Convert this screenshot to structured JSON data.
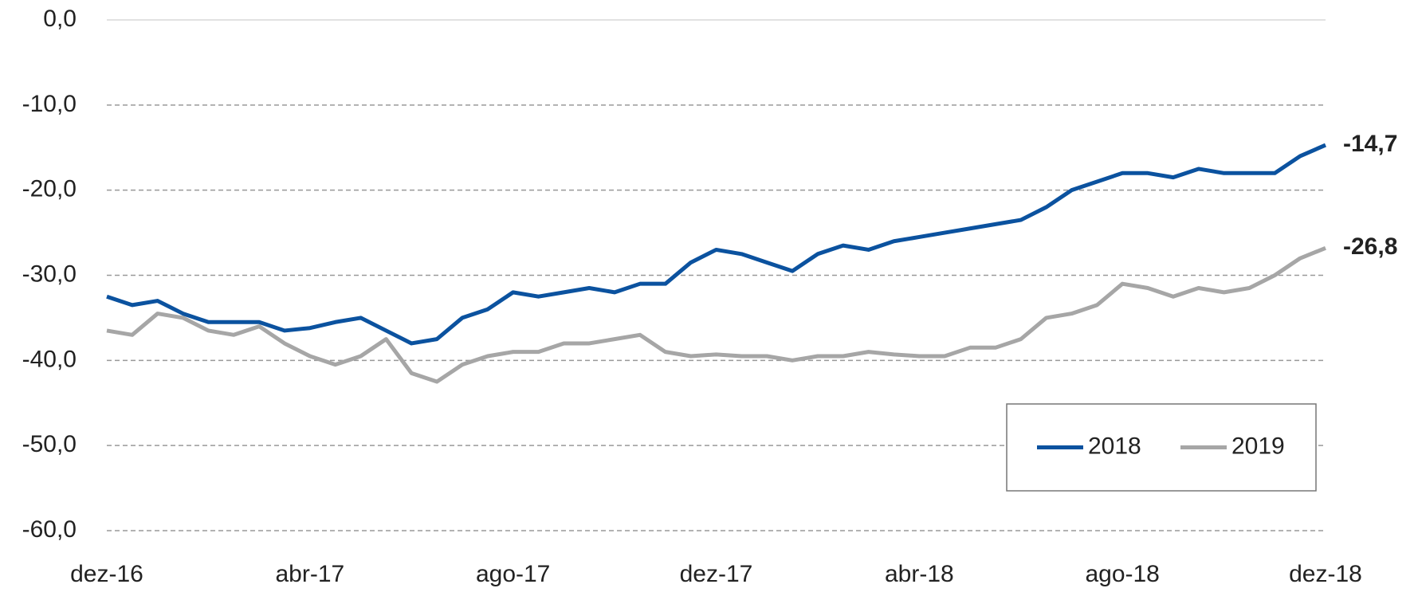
{
  "chart_data": {
    "type": "line",
    "categories": [
      "dez-16",
      null,
      null,
      null,
      null,
      null,
      null,
      null,
      "abr-17",
      null,
      null,
      null,
      null,
      null,
      null,
      null,
      "ago-17",
      null,
      null,
      null,
      null,
      null,
      null,
      null,
      "dez-17",
      null,
      null,
      null,
      null,
      null,
      null,
      null,
      "abr-18",
      null,
      null,
      null,
      null,
      null,
      null,
      null,
      "ago-18",
      null,
      null,
      null,
      null,
      null,
      null,
      null,
      "dez-18"
    ],
    "series": [
      {
        "name": "2018",
        "color": "#0b529f",
        "values": [
          -32.5,
          -33.5,
          -33,
          -34.5,
          -35.5,
          -35.5,
          -35.5,
          -36.5,
          -36.2,
          -35.5,
          -35,
          -36.5,
          -38,
          -37.5,
          -35,
          -34,
          -32,
          -32.5,
          -32,
          -31.5,
          -32,
          -31,
          -31,
          -28.5,
          -27,
          -27.5,
          -28.5,
          -29.5,
          -27.5,
          -26.5,
          -27,
          -26,
          -25.5,
          -25,
          -24.5,
          -24,
          -23.5,
          -22,
          -20,
          -19,
          -18,
          -18,
          -18.5,
          -17.5,
          -18,
          -18,
          -18,
          -16,
          -14.7
        ],
        "value_labels": [
          null,
          null,
          null,
          null,
          null,
          null,
          null,
          null,
          null,
          null,
          null,
          null,
          null,
          null,
          null,
          null,
          null,
          null,
          null,
          null,
          null,
          null,
          null,
          null,
          null,
          null,
          null,
          null,
          null,
          null,
          null,
          null,
          null,
          null,
          null,
          null,
          null,
          null,
          null,
          null,
          null,
          null,
          null,
          null,
          null,
          null,
          null,
          null,
          "-14,7"
        ]
      },
      {
        "name": "2019",
        "color": "#a6a6a6",
        "values": [
          -36.5,
          -37,
          -34.5,
          -35,
          -36.5,
          -37,
          -36,
          -38,
          -39.5,
          -40.5,
          -39.5,
          -37.5,
          -41.5,
          -42.5,
          -40.5,
          -39.5,
          -39,
          -39,
          -38,
          -38,
          -37.5,
          -37,
          -39,
          -39.5,
          -39.3,
          -39.5,
          -39.5,
          -40,
          -39.5,
          -39.5,
          -39,
          -39.3,
          -39.5,
          -39.5,
          -38.5,
          -38.5,
          -37.5,
          -35,
          -34.5,
          -33.5,
          -31,
          -31.5,
          -32.5,
          -31.5,
          -32,
          -31.5,
          -30,
          -28,
          -26.8
        ],
        "value_labels": [
          null,
          null,
          null,
          null,
          null,
          null,
          null,
          null,
          null,
          null,
          null,
          null,
          null,
          null,
          null,
          null,
          null,
          null,
          null,
          null,
          null,
          null,
          null,
          null,
          null,
          null,
          null,
          null,
          null,
          null,
          null,
          null,
          null,
          null,
          null,
          null,
          null,
          null,
          null,
          null,
          null,
          null,
          null,
          null,
          null,
          null,
          null,
          null,
          "-26,8"
        ]
      }
    ],
    "ylim": [
      -60,
      0
    ],
    "yticks": [
      {
        "value": 0,
        "label": "0,0"
      },
      {
        "value": -10,
        "label": "-10,0"
      },
      {
        "value": -20,
        "label": "-20,0"
      },
      {
        "value": -30,
        "label": "-30,0"
      },
      {
        "value": -40,
        "label": "-40,0"
      },
      {
        "value": -50,
        "label": "-50,0"
      },
      {
        "value": -60,
        "label": "-60,0"
      }
    ],
    "grid": true,
    "legend": "lower right"
  }
}
